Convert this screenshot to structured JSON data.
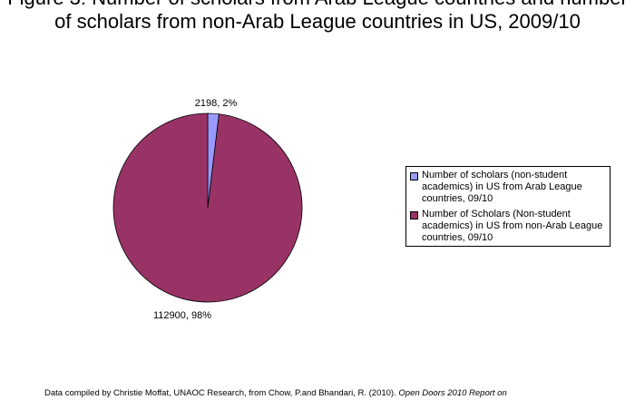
{
  "title_lines": [
    "Figure 3: Number of scholars from Arab League countries and number",
    "of scholars from non-Arab League countries in US, 2009/10"
  ],
  "chart_data": {
    "type": "pie",
    "title": "Figure 3: Number of scholars from Arab League countries and number of scholars from non-Arab League countries in US, 2009/10",
    "slices": [
      {
        "name": "Number of scholars (non-student academics) in US from Arab League countries, 09/10",
        "value": 2198,
        "percent": 2,
        "label": "2198, 2%",
        "color": "#9999ff"
      },
      {
        "name": "Number of Scholars (Non-student academics) in US from non-Arab League countries, 09/10",
        "value": 112900,
        "percent": 98,
        "label": "112900, 98%",
        "color": "#993366"
      }
    ],
    "legend_position": "right"
  },
  "legend": {
    "items": [
      {
        "text": "Number of scholars (non-student academics) in US from Arab League countries, 09/10",
        "color": "#9999ff"
      },
      {
        "text": "Number of Scholars (Non-student academics) in US from non-Arab League countries, 09/10",
        "color": "#993366"
      }
    ]
  },
  "footer": {
    "text": "Data compiled by Christie Moffat, UNAOC Research, from Chow, P.and Bhandari, R. (2010). ",
    "italic": "Open Doors 2010 Report on"
  }
}
